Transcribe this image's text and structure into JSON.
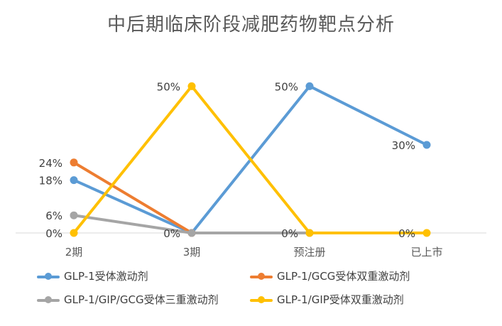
{
  "chart_data": {
    "type": "line",
    "title": "中后期临床阶段减肥药物靶点分析",
    "categories": [
      "2期",
      "3期",
      "预注册",
      "已上市"
    ],
    "ylim": [
      0,
      0.6
    ],
    "grid": false,
    "legend_position": "bottom",
    "series": [
      {
        "name": "GLP-1受体激动剂",
        "color": "#5B9BD5",
        "values": [
          0.18,
          0,
          0.5,
          0.3
        ],
        "labels": [
          "18%",
          "0%",
          "50%",
          "30%"
        ]
      },
      {
        "name": "GLP-1/GCG受体双重激动剂",
        "color": "#ED7D31",
        "values": [
          0.24,
          0,
          null,
          null
        ],
        "labels": [
          "24%",
          "",
          "",
          ""
        ]
      },
      {
        "name": "GLP-1/GIP/GCG受体三重激动剂",
        "color": "#A5A5A5",
        "values": [
          0.06,
          0,
          0,
          null
        ],
        "labels": [
          "6%",
          "",
          "",
          ""
        ]
      },
      {
        "name": "GLP-1/GIP受体双重激动剂",
        "color": "#FFC000",
        "values": [
          0,
          0.5,
          0,
          0
        ],
        "labels": [
          "0%",
          "50%",
          "0%",
          "0%"
        ]
      }
    ]
  }
}
